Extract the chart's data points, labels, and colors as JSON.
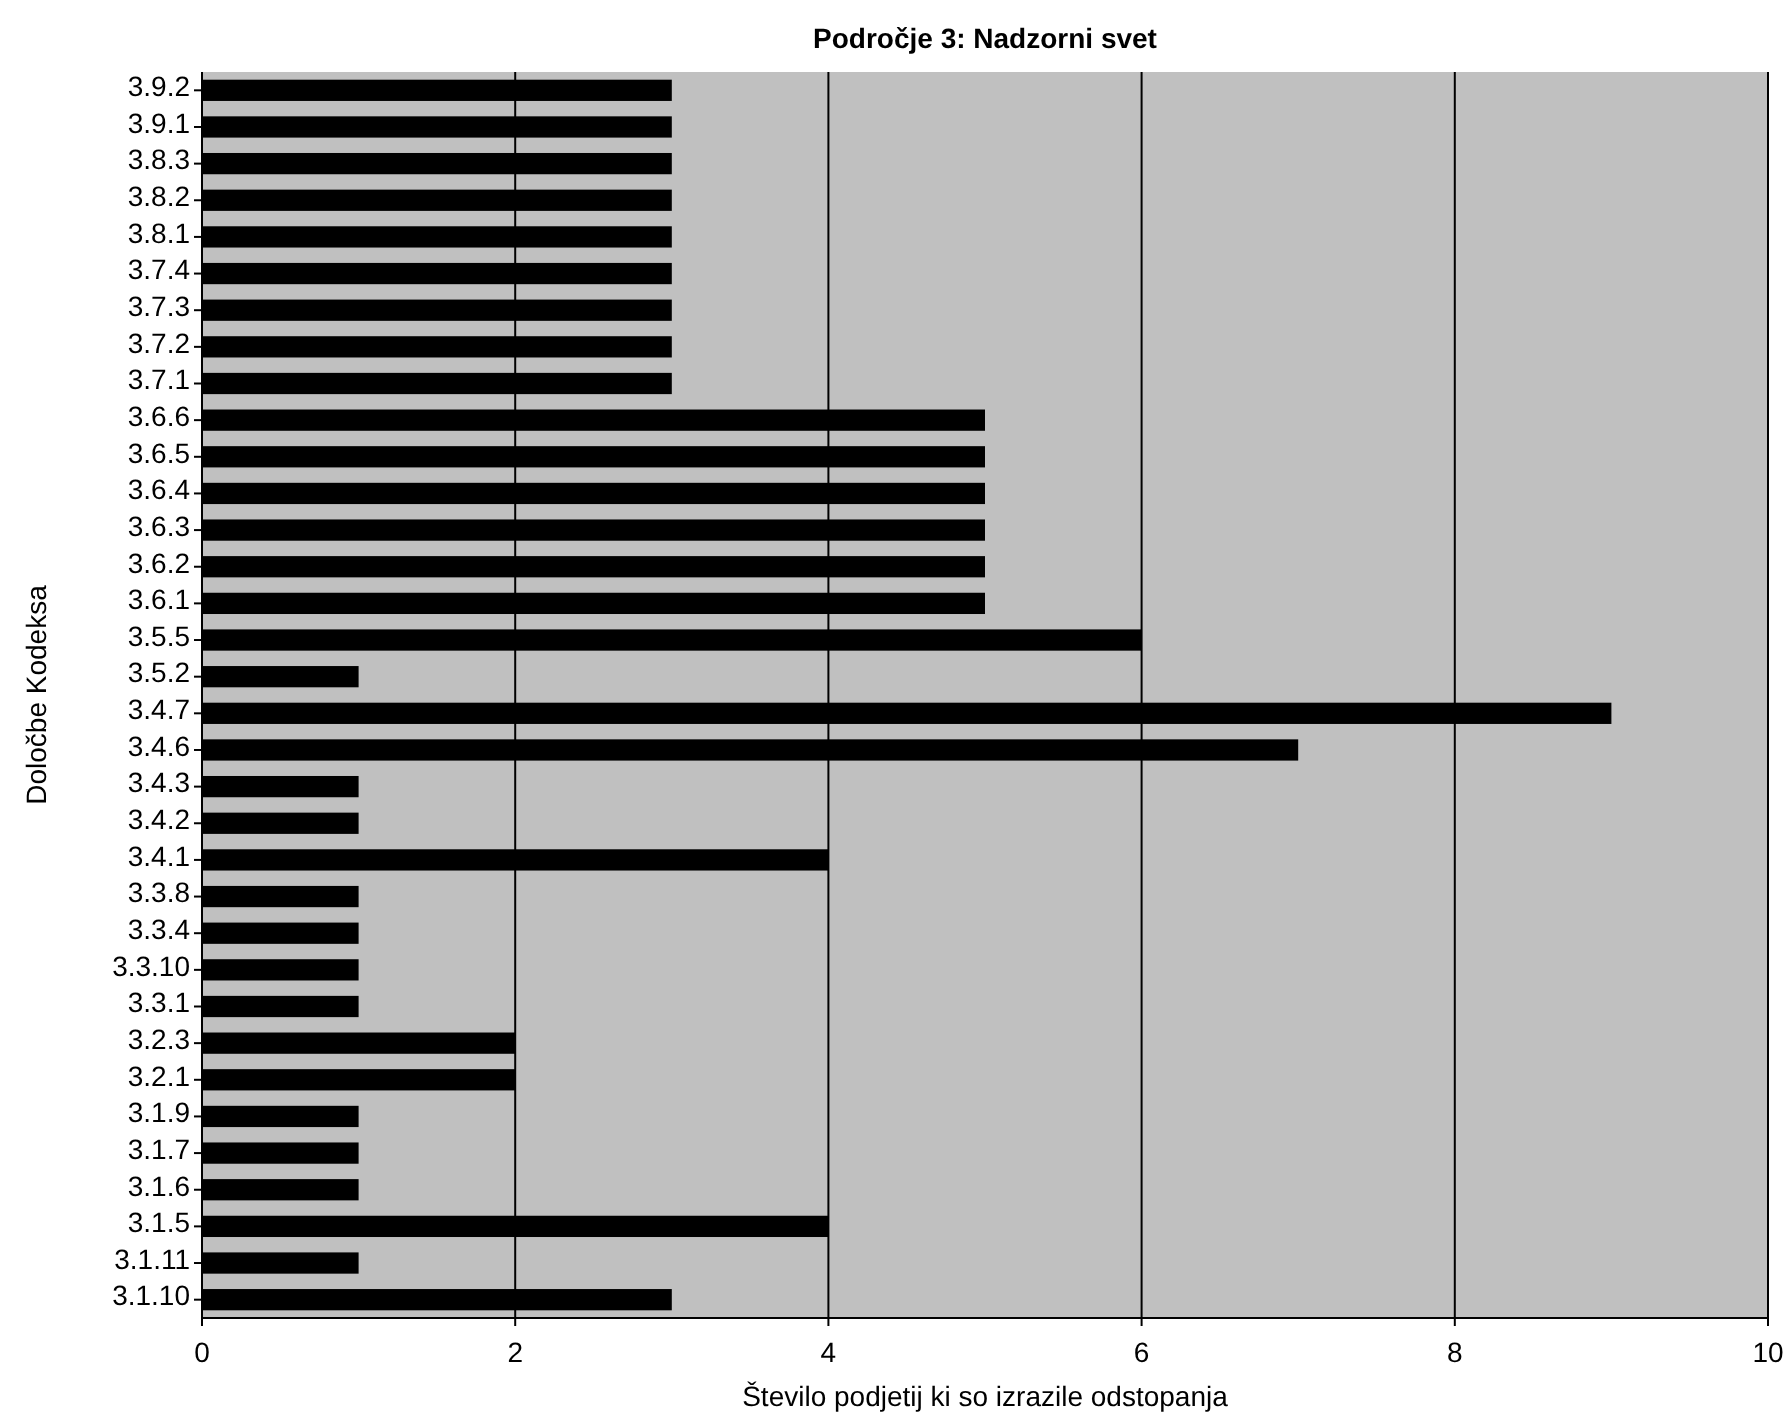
{
  "chart_data": {
    "type": "bar",
    "orientation": "horizontal",
    "title": "Področje 3: Nadzorni svet",
    "xlabel": "Število podjetij ki so izrazile odstopanja",
    "ylabel": "Določbe Kodeksa",
    "categories": [
      "3.9.2",
      "3.9.1",
      "3.8.3",
      "3.8.2",
      "3.8.1",
      "3.7.4",
      "3.7.3",
      "3.7.2",
      "3.7.1",
      "3.6.6",
      "3.6.5",
      "3.6.4",
      "3.6.3",
      "3.6.2",
      "3.6.1",
      "3.5.5",
      "3.5.2",
      "3.4.7",
      "3.4.6",
      "3.4.3",
      "3.4.2",
      "3.4.1",
      "3.3.8",
      "3.3.4",
      "3.3.10",
      "3.3.1",
      "3.2.3",
      "3.2.1",
      "3.1.9",
      "3.1.7",
      "3.1.6",
      "3.1.5",
      "3.1.11",
      "3.1.10"
    ],
    "values": [
      3,
      3,
      3,
      3,
      3,
      3,
      3,
      3,
      3,
      5,
      5,
      5,
      5,
      5,
      5,
      6,
      1,
      9,
      7,
      1,
      1,
      4,
      1,
      1,
      1,
      1,
      2,
      2,
      1,
      1,
      1,
      4,
      1,
      3
    ],
    "color": "#000000",
    "xlim": [
      0,
      10
    ],
    "xticks": [
      0,
      2,
      4,
      6,
      8,
      10
    ],
    "grid": "x"
  }
}
